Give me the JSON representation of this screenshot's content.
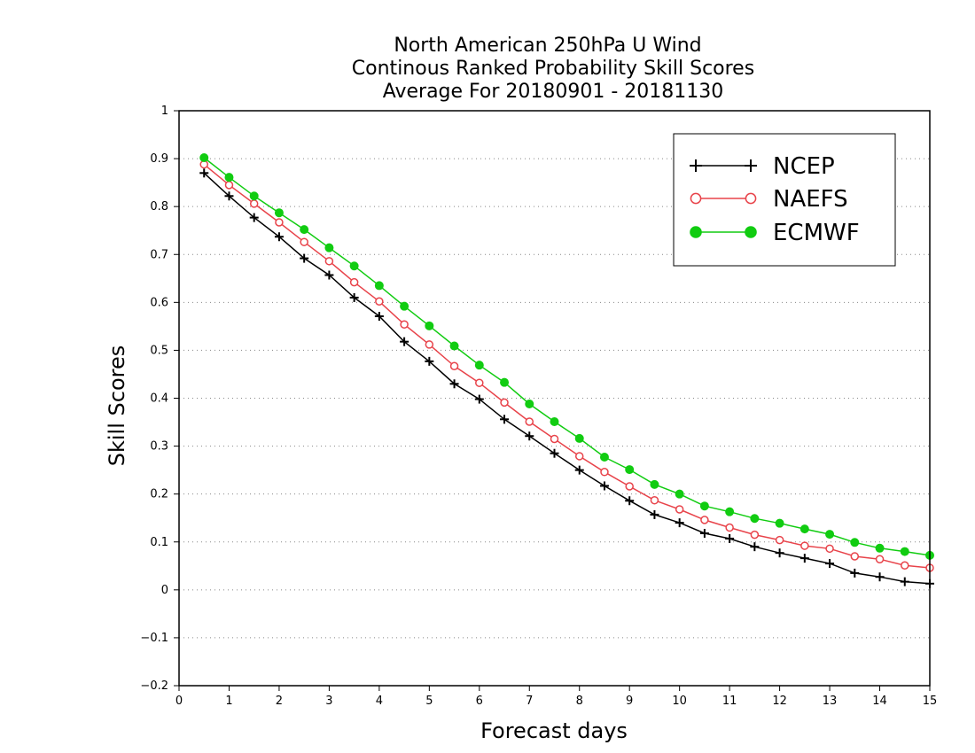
{
  "chart_data": {
    "type": "line",
    "title": [
      "North American 250hPa U Wind",
      "Continous Ranked Probability Skill Scores",
      "Average For 20180901 - 20181130"
    ],
    "xlabel": "Forecast days",
    "ylabel": "Skill Scores",
    "xlim": [
      0,
      15
    ],
    "ylim": [
      -0.2,
      1
    ],
    "xticks": [
      0,
      1,
      2,
      3,
      4,
      5,
      6,
      7,
      8,
      9,
      10,
      11,
      12,
      13,
      14,
      15
    ],
    "xtick_labels": [
      "0",
      "1",
      "2",
      "3",
      "4",
      "5",
      "6",
      "7",
      "8",
      "9",
      "10",
      "11",
      "12",
      "13",
      "14",
      "15"
    ],
    "yticks": [
      -0.2,
      -0.1,
      0,
      0.1,
      0.2,
      0.3,
      0.4,
      0.5,
      0.6,
      0.7,
      0.8,
      0.9,
      1
    ],
    "ytick_labels": [
      "−0.2",
      "−0.1",
      "0",
      "0.1",
      "0.2",
      "0.3",
      "0.4",
      "0.5",
      "0.6",
      "0.7",
      "0.8",
      "0.9",
      "1"
    ],
    "grid": "horizontal dotted",
    "legend_position": "top-right",
    "x": [
      0.5,
      1.0,
      1.5,
      2.0,
      2.5,
      3.0,
      3.5,
      4.0,
      4.5,
      5.0,
      5.5,
      6.0,
      6.5,
      7.0,
      7.5,
      8.0,
      8.5,
      9.0,
      9.5,
      10.0,
      10.5,
      11.0,
      11.5,
      12.0,
      12.5,
      13.0,
      13.5,
      14.0,
      14.5,
      15.0
    ],
    "series": [
      {
        "name": "NCEP",
        "color": "#000000",
        "marker": "plus",
        "values": [
          0.87,
          0.822,
          0.777,
          0.737,
          0.692,
          0.657,
          0.61,
          0.571,
          0.518,
          0.477,
          0.43,
          0.398,
          0.356,
          0.321,
          0.285,
          0.25,
          0.217,
          0.186,
          0.157,
          0.14,
          0.118,
          0.107,
          0.09,
          0.077,
          0.066,
          0.055,
          0.035,
          0.027,
          0.017,
          0.013
        ]
      },
      {
        "name": "NAEFS",
        "color": "#e8434a",
        "marker": "open-circle",
        "values": [
          0.888,
          0.845,
          0.806,
          0.767,
          0.726,
          0.686,
          0.642,
          0.602,
          0.554,
          0.512,
          0.467,
          0.432,
          0.391,
          0.351,
          0.315,
          0.279,
          0.246,
          0.216,
          0.187,
          0.168,
          0.146,
          0.13,
          0.115,
          0.104,
          0.092,
          0.086,
          0.07,
          0.064,
          0.051,
          0.046
        ]
      },
      {
        "name": "ECMWF",
        "color": "#11cc11",
        "marker": "filled-circle",
        "values": [
          0.902,
          0.861,
          0.822,
          0.787,
          0.752,
          0.714,
          0.676,
          0.635,
          0.592,
          0.551,
          0.509,
          0.469,
          0.433,
          0.388,
          0.351,
          0.316,
          0.277,
          0.251,
          0.22,
          0.2,
          0.175,
          0.163,
          0.149,
          0.139,
          0.127,
          0.116,
          0.099,
          0.087,
          0.08,
          0.072
        ]
      }
    ]
  }
}
